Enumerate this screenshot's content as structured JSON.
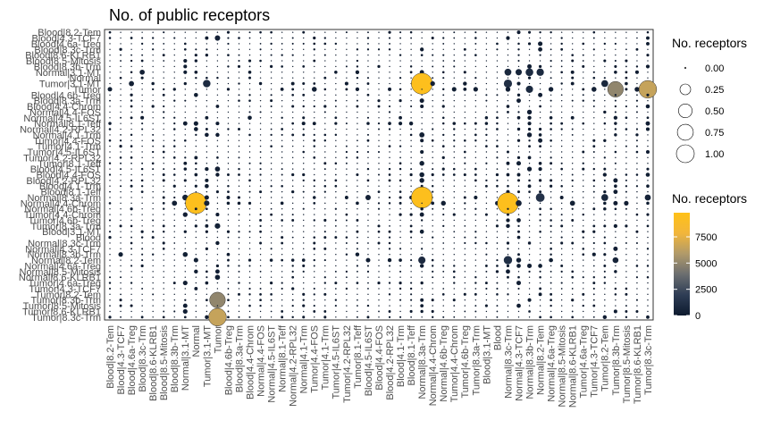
{
  "chart_data": {
    "type": "scatter",
    "title": "No. of public receptors",
    "xlabel": "",
    "ylabel": "",
    "grid": true,
    "legend_position": "right",
    "x_categories": [
      "Blood|8.2-Tem",
      "Blood|4.3-TCF7",
      "Blood|4.6a-Treg",
      "Blood|8.3c-Trm",
      "Blood|8.6-KLRB1",
      "Blood|8.5-Mitosis",
      "Blood|8.3b-Trm",
      "Normal|3.1-MT",
      "Normal",
      "Tumor|3.1-MT",
      "Tumor",
      "Blood|4.6b-Treg",
      "Blood|8.3a-Trm",
      "Blood|4.4-Chrom",
      "Normal|4.4-FOS",
      "Normal|4.5-IL6ST",
      "Normal|8.1-Teff",
      "Normal|4.2-RPL32",
      "Normal|4.1-Trm",
      "Tumor|4.4-FOS",
      "Tumor|4.1-Trm",
      "Tumor|4.5-IL6ST",
      "Tumor|4.2-RPL32",
      "Tumor|8.1-Teff",
      "Blood|4.5-IL6ST",
      "Blood|4.4-FOS",
      "Blood|4.2-RPL32",
      "Blood|4.1-Trm",
      "Blood|8.1-Teff",
      "Normal|8.3a-Trm",
      "Normal|4.4-Chrom",
      "Normal|4.6b-Treg",
      "Tumor|4.4-Chrom",
      "Tumor|4.6b-Treg",
      "Tumor|8.3a-Trm",
      "Blood|3.1-MT",
      "Blood",
      "Normal|8.3c-Trm",
      "Normal|4.3-TCF7",
      "Normal|8.3b-Trm",
      "Normal|8.2-Tem",
      "Normal|4.6a-Treg",
      "Normal|8.5-Mitosis",
      "Normal|8.6-KLRB1",
      "Tumor|4.6a-Treg",
      "Tumor|4.3-TCF7",
      "Tumor|8.2-Tem",
      "Tumor|8.3b-Trm",
      "Tumor|8.5-Mitosis",
      "Tumor|8.6-KLRB1",
      "Tumor|8.3c-Trm"
    ],
    "y_categories": [
      "Blood|8.2-Tem",
      "Blood|4.3-TCF7",
      "Blood|4.6a-Treg",
      "Blood|8.3c-Trm",
      "Blood|8.6-KLRB1",
      "Blood|8.5-Mitosis",
      "Blood|8.3b-Trm",
      "Normal|3.1-MT",
      "Normal",
      "Tumor|3.1-MT",
      "Tumor",
      "Blood|4.6b-Treg",
      "Blood|8.3a-Trm",
      "Blood|4.4-Chrom",
      "Normal|4.4-FOS",
      "Normal|4.5-IL6ST",
      "Normal|8.1-Teff",
      "Normal|4.2-RPL32",
      "Normal|4.1-Trm",
      "Tumor|4.4-FOS",
      "Tumor|4.1-Trm",
      "Tumor|4.5-IL6ST",
      "Tumor|4.2-RPL32",
      "Tumor|8.1-Teff",
      "Blood|4.5-IL6ST",
      "Blood|4.4-FOS",
      "Blood|4.2-RPL32",
      "Blood|4.1-Trm",
      "Blood|8.1-Teff",
      "Normal|8.3a-Trm",
      "Normal|4.4-Chrom",
      "Normal|4.6b-Treg",
      "Tumor|4.4-Chrom",
      "Tumor|4.6b-Treg",
      "Tumor|8.3a-Trm",
      "Blood|3.1-MT",
      "Blood",
      "Normal|8.3c-Trm",
      "Normal|4.3-TCF7",
      "Normal|8.3b-Trm",
      "Normal|8.2-Tem",
      "Normal|4.6a-Treg",
      "Normal|8.5-Mitosis",
      "Normal|8.6-KLRB1",
      "Tumor|4.6a-Treg",
      "Tumor|4.3-TCF7",
      "Tumor|8.2-Tem",
      "Tumor|8.3b-Trm",
      "Tumor|8.5-Mitosis",
      "Tumor|8.6-KLRB1",
      "Tumor|8.3c-Trm"
    ],
    "size_legend": {
      "title": "No. receptors",
      "values": [
        0.0,
        0.25,
        0.5,
        0.75,
        1.0
      ],
      "labels": [
        "0.00",
        "0.25",
        "0.50",
        "0.75",
        "1.00"
      ]
    },
    "color_legend": {
      "title": "No. receptors",
      "range": [
        0,
        9800
      ],
      "ticks": [
        0,
        2500,
        5000,
        7500
      ],
      "tick_labels": [
        "0",
        "2500",
        "5000",
        "7500"
      ],
      "colors": [
        "#0d1a2e",
        "#2e3d55",
        "#6b6e70",
        "#b09a6a",
        "#f2b63b",
        "#ffc117"
      ]
    },
    "highlighted_points": [
      {
        "x": "Normal|8.3a-Trm",
        "y": "Tumor|3.1-MT",
        "value": 9500
      },
      {
        "x": "Tumor|8.3c-Trm",
        "y": "Tumor",
        "value": 6500
      },
      {
        "x": "Tumor|8.3b-Trm",
        "y": "Tumor",
        "value": 5000
      },
      {
        "x": "Normal",
        "y": "Normal|4.4-Chrom",
        "value": 9500
      },
      {
        "x": "Normal|8.3c-Trm",
        "y": "Normal|4.4-Chrom",
        "value": 9500
      },
      {
        "x": "Normal|8.3a-Trm",
        "y": "Normal|8.3a-Trm",
        "value": 9500
      },
      {
        "x": "Tumor",
        "y": "Tumor|8.3c-Trm",
        "value": 6500
      },
      {
        "x": "Tumor",
        "y": "Tumor|8.3b-Trm",
        "value": 5000
      }
    ]
  }
}
